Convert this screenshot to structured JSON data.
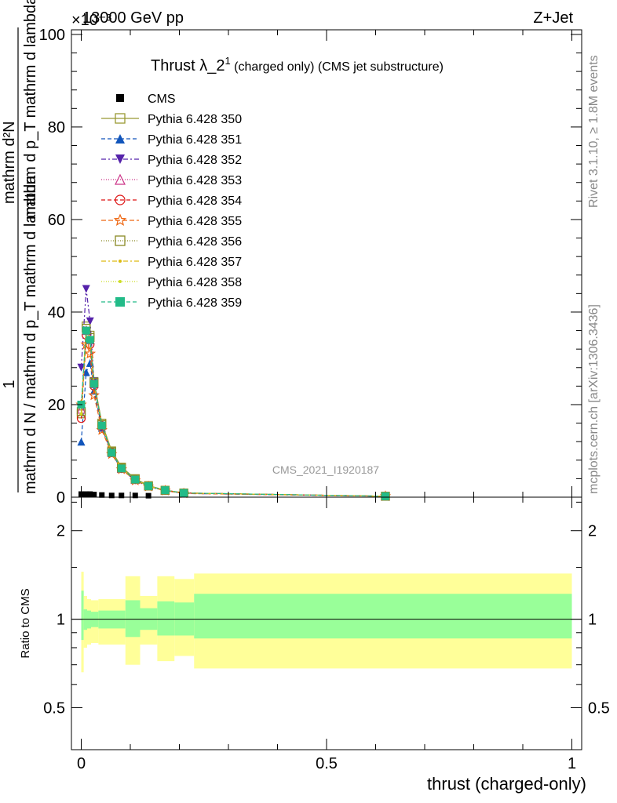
{
  "header": {
    "left": "13000 GeV pp",
    "right": "Z+Jet",
    "exponent": "×10⁻³"
  },
  "side_labels": {
    "rivet": "Rivet 3.1.10, ≥ 1.8M events",
    "mcplots": "mcplots.cern.ch [arXiv:1306.3436]"
  },
  "watermark": "CMS_2021_I1920187",
  "main_title": {
    "prefix": "Thrust λ_2",
    "sup": "1",
    "suffix": " (charged only) (CMS jet substructure)"
  },
  "ylabel": {
    "numerator": "1",
    "denominator": "mathrm d N / mathrm d p_T mathrm d lambda",
    "top_line1": "mathrm d²N",
    "top_line2": "mathrm d p_T mathrm d lambda"
  },
  "ratio_ylabel": "Ratio to CMS",
  "xlabel": "thrust (charged-only)",
  "colors": {
    "band_outer": "#ffff99",
    "band_inner": "#99ff99"
  },
  "chart_data": {
    "type": "line",
    "xlim": [
      -0.02,
      1.02
    ],
    "ylim": [
      0,
      101
    ],
    "y_scale_note": "×10⁻³",
    "main_yticks": [
      0,
      20,
      40,
      60,
      80,
      100
    ],
    "ratio_ylim": [
      0.36,
      2.6
    ],
    "ratio_yticks": [
      0.5,
      1,
      2
    ],
    "xticks": [
      0,
      0.5,
      1
    ],
    "x_bin_centers": [
      0.0,
      0.01,
      0.018,
      0.026,
      0.042,
      0.062,
      0.082,
      0.11,
      0.137,
      0.171,
      0.209,
      0.62
    ],
    "cms_x": [
      0.0,
      0.01,
      0.018,
      0.026,
      0.042,
      0.062,
      0.082,
      0.11,
      0.137
    ],
    "cms_y": [
      0.5,
      0.5,
      0.5,
      0.4,
      0.3,
      0.2,
      0.2,
      0.2,
      0.15
    ],
    "series": [
      {
        "name": "CMS",
        "color": "#000000",
        "marker": "square-filled",
        "dash": "none"
      },
      {
        "name": "Pythia 6.428 350",
        "color": "#999933",
        "marker": "square-open",
        "dash": "none",
        "values": [
          18,
          37,
          35,
          25,
          16,
          10,
          6.5,
          4.0,
          2.5,
          1.5,
          0.9,
          0.2
        ]
      },
      {
        "name": "Pythia 6.428 351",
        "color": "#1155bb",
        "marker": "triangle-up-filled",
        "dash": "5,3",
        "values": [
          12,
          27,
          29,
          23,
          15,
          9.5,
          6.3,
          3.8,
          2.4,
          1.5,
          0.9,
          0.2
        ]
      },
      {
        "name": "Pythia 6.428 352",
        "color": "#5522aa",
        "marker": "triangle-down-filled",
        "dash": "6,3,2,3",
        "values": [
          28,
          45,
          38,
          25,
          15,
          9.5,
          6.0,
          3.6,
          2.3,
          1.4,
          0.8,
          0.2
        ]
      },
      {
        "name": "Pythia 6.428 353",
        "color": "#cc3388",
        "marker": "triangle-up-open",
        "dash": "1,2",
        "values": [
          19,
          36,
          34,
          24.5,
          15.5,
          9.7,
          6.2,
          3.8,
          2.4,
          1.5,
          0.9,
          0.2
        ]
      },
      {
        "name": "Pythia 6.428 354",
        "color": "#dd1111",
        "marker": "circle-open",
        "dash": "5,3",
        "values": [
          17,
          35,
          33,
          24,
          15.5,
          9.7,
          6.2,
          3.8,
          2.4,
          1.5,
          0.9,
          0.2
        ]
      },
      {
        "name": "Pythia 6.428 355",
        "color": "#ee6611",
        "marker": "star-open",
        "dash": "6,3",
        "values": [
          20,
          33,
          31,
          22,
          14.5,
          9.3,
          6.0,
          3.6,
          2.3,
          1.4,
          0.8,
          0.2
        ]
      },
      {
        "name": "Pythia 6.428 356",
        "color": "#888822",
        "marker": "square-open",
        "dash": "1,2",
        "values": [
          18.5,
          36.5,
          34.5,
          24.8,
          15.7,
          9.8,
          6.3,
          3.9,
          2.4,
          1.5,
          0.9,
          0.2
        ]
      },
      {
        "name": "Pythia 6.428 357",
        "color": "#ddbb11",
        "marker": "dot",
        "dash": "6,3,2,3",
        "values": [
          18,
          36,
          34,
          24.5,
          15.5,
          9.6,
          6.2,
          3.8,
          2.4,
          1.5,
          0.9,
          0.2
        ]
      },
      {
        "name": "Pythia 6.428 358",
        "color": "#ccdd22",
        "marker": "dot",
        "dash": "1,2",
        "values": [
          18,
          36.5,
          34.5,
          24.6,
          15.6,
          9.7,
          6.2,
          3.8,
          2.4,
          1.5,
          0.9,
          0.2
        ]
      },
      {
        "name": "Pythia 6.428 359",
        "color": "#22bb88",
        "marker": "square-filled",
        "dash": "5,3",
        "values": [
          20,
          36,
          34,
          24.5,
          15.5,
          9.6,
          6.2,
          3.8,
          2.4,
          1.5,
          0.9,
          0.2
        ]
      }
    ],
    "ratio_bands": [
      {
        "x": [
          0.0,
          0.005
        ],
        "outer": [
          0.66,
          1.45
        ],
        "inner": [
          0.85,
          1.25
        ]
      },
      {
        "x": [
          0.005,
          0.012
        ],
        "outer": [
          0.8,
          1.2
        ],
        "inner": [
          0.92,
          1.08
        ]
      },
      {
        "x": [
          0.012,
          0.02
        ],
        "outer": [
          0.82,
          1.17
        ],
        "inner": [
          0.93,
          1.07
        ]
      },
      {
        "x": [
          0.02,
          0.035
        ],
        "outer": [
          0.83,
          1.16
        ],
        "inner": [
          0.94,
          1.06
        ]
      },
      {
        "x": [
          0.035,
          0.09
        ],
        "outer": [
          0.82,
          1.17
        ],
        "inner": [
          0.93,
          1.07
        ]
      },
      {
        "x": [
          0.09,
          0.12
        ],
        "outer": [
          0.7,
          1.4
        ],
        "inner": [
          0.87,
          1.16
        ]
      },
      {
        "x": [
          0.12,
          0.155
        ],
        "outer": [
          0.82,
          1.2
        ],
        "inner": [
          0.92,
          1.09
        ]
      },
      {
        "x": [
          0.155,
          0.19
        ],
        "outer": [
          0.72,
          1.4
        ],
        "inner": [
          0.88,
          1.15
        ]
      },
      {
        "x": [
          0.19,
          0.23
        ],
        "outer": [
          0.75,
          1.37
        ],
        "inner": [
          0.88,
          1.14
        ]
      },
      {
        "x": [
          0.23,
          1.0
        ],
        "outer": [
          0.68,
          1.43
        ],
        "inner": [
          0.86,
          1.22
        ]
      }
    ]
  }
}
